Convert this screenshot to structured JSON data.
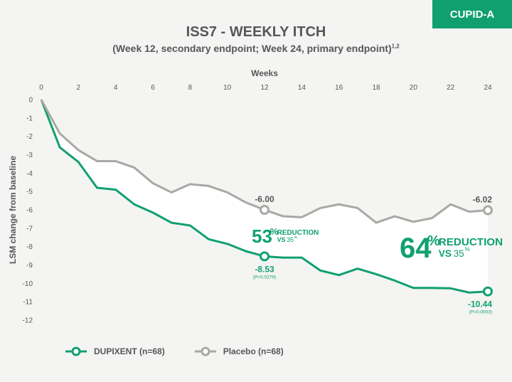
{
  "badge": "CUPID-A",
  "title": "ISS7 - WEEKLY ITCH",
  "subtitle": "(Week 12, secondary endpoint; Week 24, primary endpoint)",
  "subtitle_refs": "1,2",
  "colors": {
    "dupixent": "#10a070",
    "placebo": "#aaa8a5",
    "text": "#555759"
  },
  "chart_data": {
    "type": "line",
    "xlabel": "Weeks",
    "ylabel": "LSM change from baseline",
    "xlim": [
      0,
      24
    ],
    "ylim": [
      -12,
      0
    ],
    "x_ticks": [
      0,
      2,
      4,
      6,
      8,
      10,
      12,
      14,
      16,
      18,
      20,
      22,
      24
    ],
    "y_ticks": [
      0,
      -1,
      -2,
      -3,
      -4,
      -5,
      -6,
      -7,
      -8,
      -9,
      -10,
      -11,
      -12
    ],
    "x": [
      0,
      1,
      2,
      3,
      4,
      5,
      6,
      7,
      8,
      9,
      10,
      11,
      12,
      13,
      14,
      15,
      16,
      17,
      18,
      19,
      20,
      21,
      22,
      23,
      24
    ],
    "series": [
      {
        "name": "DUPIXENT (n=68)",
        "color": "#10a070",
        "values": [
          0,
          -2.6,
          -3.4,
          -4.8,
          -4.9,
          -5.7,
          -6.15,
          -6.7,
          -6.85,
          -7.6,
          -7.85,
          -8.25,
          -8.53,
          -8.6,
          -8.6,
          -9.3,
          -9.55,
          -9.2,
          -9.5,
          -9.85,
          -10.25,
          -10.25,
          -10.27,
          -10.5,
          -10.44
        ],
        "markers": [
          {
            "x": 12,
            "label": "-8.53",
            "sublabel": "(P=0.0279)"
          },
          {
            "x": 24,
            "label": "-10.44",
            "sublabel": "(P=0.0003)"
          }
        ]
      },
      {
        "name": "Placebo (n=68)",
        "color": "#aaa8a5",
        "values": [
          0,
          -1.85,
          -2.75,
          -3.35,
          -3.35,
          -3.7,
          -4.55,
          -5.05,
          -4.6,
          -4.7,
          -5.05,
          -5.6,
          -6.0,
          -6.35,
          -6.4,
          -5.9,
          -5.7,
          -5.9,
          -6.7,
          -6.35,
          -6.65,
          -6.45,
          -5.7,
          -6.1,
          -6.02
        ],
        "markers": [
          {
            "x": 12,
            "label": "-6.00"
          },
          {
            "x": 24,
            "label": "-6.02"
          }
        ]
      }
    ],
    "annotations": [
      {
        "x": 12,
        "pct": "53",
        "pct_sign": "%",
        "word": "REDUCTION",
        "vs": "VS",
        "vs_val": "35",
        "vs_sign": "%"
      },
      {
        "x": 24,
        "pct": "64",
        "pct_sign": "%",
        "word": "REDUCTION",
        "vs": "VS",
        "vs_val": "35",
        "vs_sign": "%"
      }
    ]
  }
}
